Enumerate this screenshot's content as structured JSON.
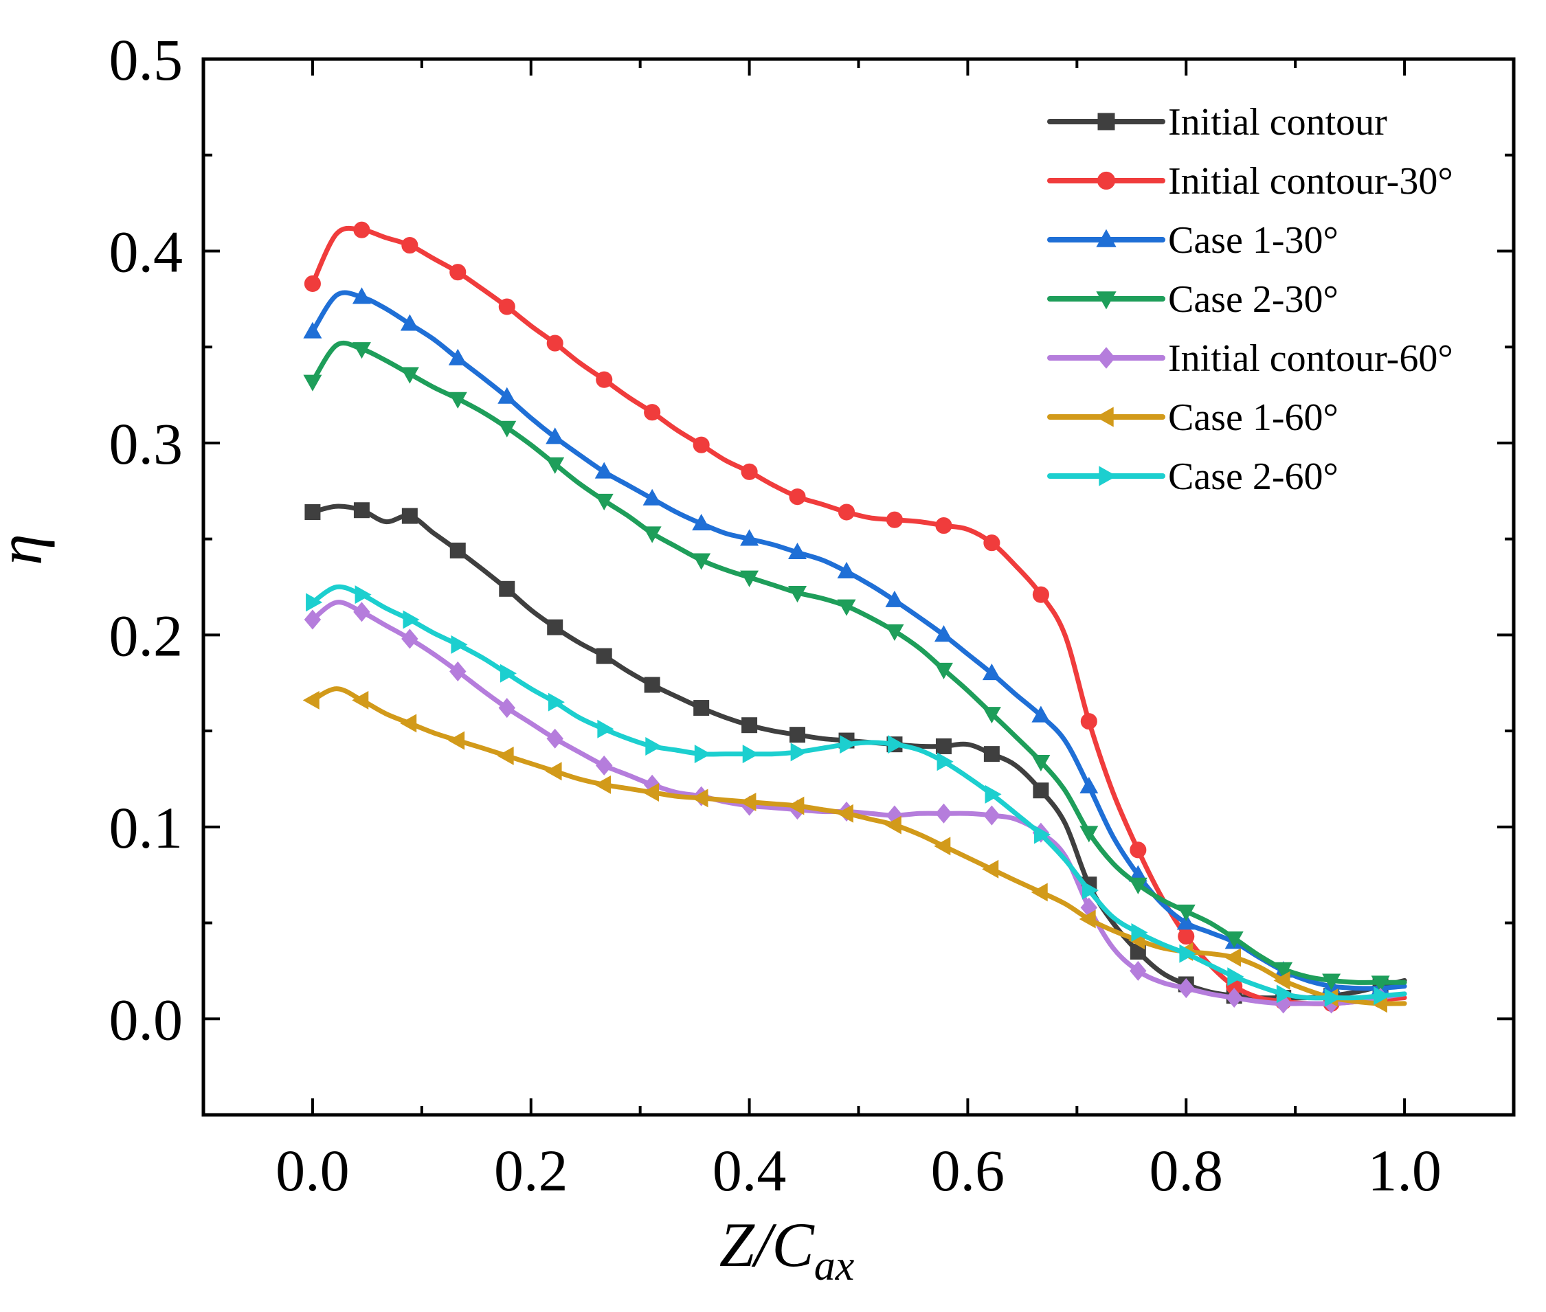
{
  "chart_data": {
    "type": "line",
    "title": "",
    "xlabel": {
      "main": "Z/C",
      "sub": "ax"
    },
    "ylabel": "η",
    "xlim": [
      -0.1,
      1.1
    ],
    "ylim": [
      -0.05,
      0.5
    ],
    "xticks": [
      0.0,
      0.2,
      0.4,
      0.6,
      0.8,
      1.0
    ],
    "xtick_labels": [
      "0.0",
      "0.2",
      "0.4",
      "0.6",
      "0.8",
      "1.0"
    ],
    "yticks": [
      0.0,
      0.1,
      0.2,
      0.3,
      0.4,
      0.5
    ],
    "ytick_labels": [
      "0.0",
      "0.1",
      "0.2",
      "0.3",
      "0.4",
      "0.5"
    ],
    "grid": false,
    "legend_position": "top-right",
    "series": [
      {
        "name": "Initial contour",
        "color": "#3f3f3f",
        "marker": "square",
        "x": [
          0.0,
          0.022,
          0.045,
          0.067,
          0.089,
          0.111,
          0.133,
          0.156,
          0.178,
          0.2,
          0.222,
          0.244,
          0.267,
          0.289,
          0.311,
          0.333,
          0.356,
          0.378,
          0.4,
          0.422,
          0.444,
          0.467,
          0.489,
          0.511,
          0.533,
          0.556,
          0.578,
          0.6,
          0.622,
          0.644,
          0.667,
          0.689,
          0.711,
          0.733,
          0.756,
          0.778,
          0.8,
          0.822,
          0.844,
          0.867,
          0.889,
          0.911,
          0.933,
          0.956,
          0.978,
          1.0
        ],
        "y": [
          0.264,
          0.267,
          0.265,
          0.259,
          0.262,
          0.253,
          0.244,
          0.234,
          0.224,
          0.213,
          0.204,
          0.196,
          0.189,
          0.181,
          0.174,
          0.168,
          0.162,
          0.157,
          0.153,
          0.15,
          0.148,
          0.146,
          0.145,
          0.144,
          0.143,
          0.142,
          0.142,
          0.143,
          0.138,
          0.132,
          0.119,
          0.102,
          0.07,
          0.05,
          0.035,
          0.024,
          0.018,
          0.014,
          0.012,
          0.011,
          0.011,
          0.011,
          0.012,
          0.014,
          0.017,
          0.02
        ]
      },
      {
        "name": "Initial contour-30°",
        "color": "#f03c3c",
        "marker": "circle",
        "x": [
          0.0,
          0.022,
          0.045,
          0.067,
          0.089,
          0.111,
          0.133,
          0.156,
          0.178,
          0.2,
          0.222,
          0.244,
          0.267,
          0.289,
          0.311,
          0.333,
          0.356,
          0.378,
          0.4,
          0.422,
          0.444,
          0.467,
          0.489,
          0.511,
          0.533,
          0.556,
          0.578,
          0.6,
          0.622,
          0.644,
          0.667,
          0.689,
          0.711,
          0.733,
          0.756,
          0.778,
          0.8,
          0.822,
          0.844,
          0.867,
          0.889,
          0.911,
          0.933,
          0.956,
          0.978,
          1.0
        ],
        "y": [
          0.383,
          0.409,
          0.411,
          0.407,
          0.403,
          0.396,
          0.389,
          0.38,
          0.371,
          0.361,
          0.352,
          0.342,
          0.333,
          0.324,
          0.316,
          0.307,
          0.299,
          0.291,
          0.285,
          0.278,
          0.272,
          0.268,
          0.264,
          0.261,
          0.26,
          0.259,
          0.257,
          0.255,
          0.248,
          0.236,
          0.221,
          0.2,
          0.155,
          0.118,
          0.088,
          0.063,
          0.043,
          0.028,
          0.017,
          0.011,
          0.009,
          0.008,
          0.008,
          0.009,
          0.01,
          0.011
        ]
      },
      {
        "name": "Case 1-30°",
        "color": "#1f6fd6",
        "marker": "triangle-up",
        "x": [
          0.0,
          0.022,
          0.045,
          0.067,
          0.089,
          0.111,
          0.133,
          0.156,
          0.178,
          0.2,
          0.222,
          0.244,
          0.267,
          0.289,
          0.311,
          0.333,
          0.356,
          0.378,
          0.4,
          0.422,
          0.444,
          0.467,
          0.489,
          0.511,
          0.533,
          0.556,
          0.578,
          0.6,
          0.622,
          0.644,
          0.667,
          0.689,
          0.711,
          0.733,
          0.756,
          0.778,
          0.8,
          0.822,
          0.844,
          0.867,
          0.889,
          0.911,
          0.933,
          0.956,
          0.978,
          1.0
        ],
        "y": [
          0.358,
          0.377,
          0.376,
          0.37,
          0.362,
          0.354,
          0.344,
          0.334,
          0.324,
          0.313,
          0.303,
          0.294,
          0.285,
          0.278,
          0.271,
          0.264,
          0.258,
          0.253,
          0.25,
          0.247,
          0.243,
          0.239,
          0.233,
          0.226,
          0.218,
          0.209,
          0.2,
          0.19,
          0.18,
          0.169,
          0.158,
          0.145,
          0.121,
          0.095,
          0.075,
          0.06,
          0.05,
          0.045,
          0.04,
          0.032,
          0.025,
          0.02,
          0.017,
          0.016,
          0.016,
          0.017
        ]
      },
      {
        "name": "Case 2-30°",
        "color": "#1e9e5a",
        "marker": "triangle-down",
        "x": [
          0.0,
          0.022,
          0.045,
          0.067,
          0.089,
          0.111,
          0.133,
          0.156,
          0.178,
          0.2,
          0.222,
          0.244,
          0.267,
          0.289,
          0.311,
          0.333,
          0.356,
          0.378,
          0.4,
          0.422,
          0.444,
          0.467,
          0.489,
          0.511,
          0.533,
          0.556,
          0.578,
          0.6,
          0.622,
          0.644,
          0.667,
          0.689,
          0.711,
          0.733,
          0.756,
          0.778,
          0.8,
          0.822,
          0.844,
          0.867,
          0.889,
          0.911,
          0.933,
          0.956,
          0.978,
          1.0
        ],
        "y": [
          0.332,
          0.351,
          0.349,
          0.343,
          0.336,
          0.329,
          0.323,
          0.316,
          0.308,
          0.299,
          0.289,
          0.279,
          0.27,
          0.262,
          0.253,
          0.246,
          0.239,
          0.234,
          0.23,
          0.226,
          0.222,
          0.219,
          0.215,
          0.209,
          0.202,
          0.193,
          0.182,
          0.171,
          0.159,
          0.147,
          0.134,
          0.119,
          0.097,
          0.081,
          0.07,
          0.062,
          0.056,
          0.05,
          0.042,
          0.033,
          0.026,
          0.022,
          0.02,
          0.019,
          0.019,
          0.019
        ]
      },
      {
        "name": "Initial contour-60°",
        "color": "#b57ddc",
        "marker": "diamond",
        "x": [
          0.0,
          0.022,
          0.045,
          0.067,
          0.089,
          0.111,
          0.133,
          0.156,
          0.178,
          0.2,
          0.222,
          0.244,
          0.267,
          0.289,
          0.311,
          0.333,
          0.356,
          0.378,
          0.4,
          0.422,
          0.444,
          0.467,
          0.489,
          0.511,
          0.533,
          0.556,
          0.578,
          0.6,
          0.622,
          0.644,
          0.667,
          0.689,
          0.711,
          0.733,
          0.756,
          0.778,
          0.8,
          0.822,
          0.844,
          0.867,
          0.889,
          0.911,
          0.933,
          0.956,
          0.978,
          1.0
        ],
        "y": [
          0.208,
          0.217,
          0.212,
          0.205,
          0.198,
          0.19,
          0.181,
          0.171,
          0.162,
          0.154,
          0.146,
          0.139,
          0.132,
          0.127,
          0.122,
          0.118,
          0.116,
          0.113,
          0.111,
          0.11,
          0.109,
          0.108,
          0.108,
          0.107,
          0.106,
          0.107,
          0.107,
          0.107,
          0.106,
          0.104,
          0.097,
          0.085,
          0.058,
          0.037,
          0.025,
          0.019,
          0.016,
          0.013,
          0.011,
          0.009,
          0.008,
          0.008,
          0.008,
          0.009,
          0.011,
          0.013
        ]
      },
      {
        "name": "Case 1-60°",
        "color": "#d29a1a",
        "marker": "triangle-left",
        "x": [
          0.0,
          0.022,
          0.045,
          0.067,
          0.089,
          0.111,
          0.133,
          0.156,
          0.178,
          0.2,
          0.222,
          0.244,
          0.267,
          0.289,
          0.311,
          0.333,
          0.356,
          0.378,
          0.4,
          0.422,
          0.444,
          0.467,
          0.489,
          0.511,
          0.533,
          0.556,
          0.578,
          0.6,
          0.622,
          0.644,
          0.667,
          0.689,
          0.711,
          0.733,
          0.756,
          0.778,
          0.8,
          0.822,
          0.844,
          0.867,
          0.889,
          0.911,
          0.933,
          0.956,
          0.978,
          1.0
        ],
        "y": [
          0.166,
          0.172,
          0.166,
          0.159,
          0.154,
          0.149,
          0.145,
          0.141,
          0.137,
          0.133,
          0.129,
          0.125,
          0.122,
          0.12,
          0.118,
          0.116,
          0.115,
          0.114,
          0.113,
          0.112,
          0.111,
          0.109,
          0.107,
          0.104,
          0.101,
          0.096,
          0.09,
          0.084,
          0.078,
          0.072,
          0.066,
          0.06,
          0.052,
          0.046,
          0.041,
          0.037,
          0.035,
          0.034,
          0.032,
          0.027,
          0.02,
          0.015,
          0.011,
          0.009,
          0.008,
          0.008
        ]
      },
      {
        "name": "Case 2-60°",
        "color": "#1ccfcf",
        "marker": "triangle-right",
        "x": [
          0.0,
          0.022,
          0.045,
          0.067,
          0.089,
          0.111,
          0.133,
          0.156,
          0.178,
          0.2,
          0.222,
          0.244,
          0.267,
          0.289,
          0.311,
          0.333,
          0.356,
          0.378,
          0.4,
          0.422,
          0.444,
          0.467,
          0.489,
          0.511,
          0.533,
          0.556,
          0.578,
          0.6,
          0.622,
          0.644,
          0.667,
          0.689,
          0.711,
          0.733,
          0.756,
          0.778,
          0.8,
          0.822,
          0.844,
          0.867,
          0.889,
          0.911,
          0.933,
          0.956,
          0.978,
          1.0
        ],
        "y": [
          0.217,
          0.225,
          0.221,
          0.214,
          0.208,
          0.201,
          0.195,
          0.188,
          0.18,
          0.172,
          0.165,
          0.157,
          0.151,
          0.146,
          0.142,
          0.14,
          0.138,
          0.138,
          0.138,
          0.138,
          0.139,
          0.141,
          0.143,
          0.144,
          0.143,
          0.14,
          0.134,
          0.126,
          0.117,
          0.107,
          0.096,
          0.083,
          0.067,
          0.053,
          0.045,
          0.039,
          0.034,
          0.028,
          0.022,
          0.017,
          0.013,
          0.011,
          0.011,
          0.011,
          0.012,
          0.013
        ]
      }
    ]
  }
}
